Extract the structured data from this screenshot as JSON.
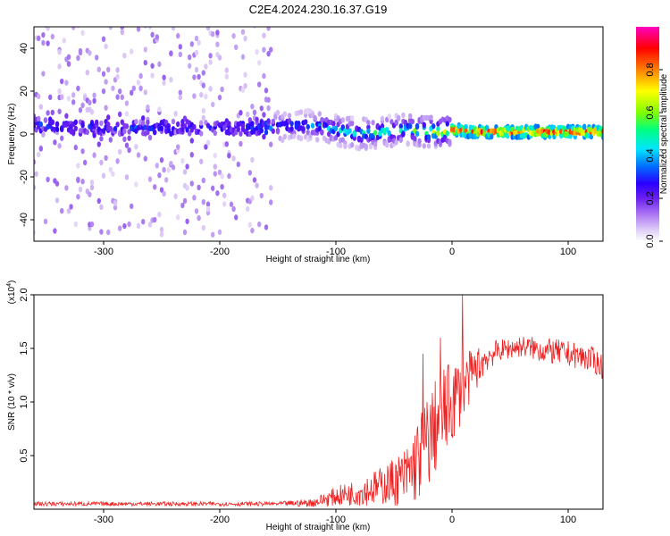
{
  "chart_data": [
    {
      "type": "heatmap",
      "title": "C2E4.2024.230.16.37.G19",
      "xlabel": "Height of straight line (km)",
      "ylabel": "Frequency (Hz)",
      "xlim": [
        -360,
        130
      ],
      "ylim": [
        -50,
        50
      ],
      "xticks": [
        -300,
        -200,
        -100,
        0,
        100
      ],
      "yticks": [
        -40,
        -20,
        0,
        20,
        40
      ],
      "colorbar": {
        "label": "Normalized spectral amplitude",
        "range": [
          0,
          1
        ],
        "ticks": [
          0.0,
          0.2,
          0.4,
          0.6,
          0.8
        ],
        "colormap": [
          "#ffffff",
          "#d9c4f5",
          "#a06cf0",
          "#6a1ff0",
          "#2a00ff",
          "#0070ff",
          "#00e5ff",
          "#00ff80",
          "#80ff00",
          "#ffff00",
          "#ff8000",
          "#ff0000",
          "#ff00c0"
        ]
      },
      "ridge": {
        "x": [
          -350,
          -300,
          -250,
          -200,
          -160,
          -140,
          -120,
          -100,
          -80,
          -60,
          -40,
          -20,
          -10,
          0,
          20,
          40,
          60,
          80,
          100,
          120,
          130
        ],
        "y": [
          4,
          3,
          3,
          3,
          3,
          4,
          4,
          2,
          0,
          1,
          2,
          1,
          1,
          2,
          1,
          1,
          1,
          1,
          1,
          1,
          1
        ],
        "peak_amplitude": [
          0.25,
          0.25,
          0.25,
          0.2,
          0.35,
          0.45,
          0.45,
          0.5,
          0.55,
          0.6,
          0.6,
          0.8,
          0.85,
          0.85,
          0.9,
          0.9,
          0.9,
          0.9,
          0.9,
          0.9,
          0.9
        ]
      }
    },
    {
      "type": "line",
      "xlabel": "Height of straight line (km)",
      "ylabel": "SNR (10 * v/v)",
      "multiplier": "(x10",
      "multiplier_exp": "4",
      "multiplier_close": ")",
      "xlim": [
        -360,
        130
      ],
      "ylim": [
        0,
        2.0
      ],
      "xticks": [
        -300,
        -200,
        -100,
        0,
        100
      ],
      "yticks": [
        0.5,
        1.0,
        1.5,
        2.0
      ],
      "color": "#ee2222",
      "envelope": {
        "x": [
          -360,
          -300,
          -250,
          -200,
          -150,
          -120,
          -100,
          -80,
          -60,
          -40,
          -30,
          -20,
          -10,
          0,
          10,
          20,
          30,
          40,
          60,
          80,
          100,
          120,
          130
        ],
        "mean": [
          0.05,
          0.05,
          0.05,
          0.05,
          0.05,
          0.06,
          0.12,
          0.16,
          0.22,
          0.3,
          0.45,
          0.65,
          0.85,
          1.0,
          1.15,
          1.3,
          1.42,
          1.48,
          1.52,
          1.48,
          1.45,
          1.4,
          1.33
        ],
        "spread": [
          0.02,
          0.02,
          0.02,
          0.02,
          0.02,
          0.04,
          0.09,
          0.13,
          0.18,
          0.28,
          0.4,
          0.45,
          0.45,
          0.4,
          0.3,
          0.2,
          0.14,
          0.1,
          0.1,
          0.12,
          0.12,
          0.12,
          0.12
        ]
      },
      "spikes": [
        {
          "x": 9,
          "y": 2.0
        },
        {
          "x": -25,
          "y": 1.45
        },
        {
          "x": -10,
          "y": 1.6
        }
      ]
    }
  ]
}
